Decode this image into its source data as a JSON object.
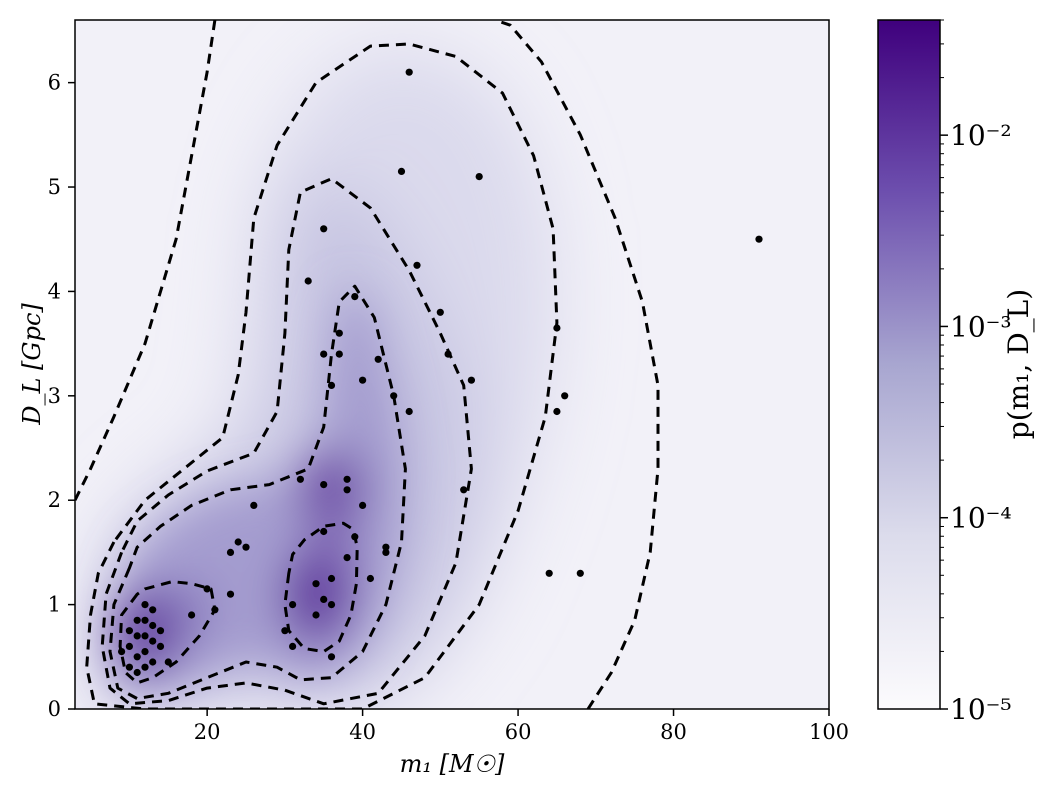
{
  "chart_data": {
    "type": "heatmap",
    "subtype": "2D density (KDE) with dashed contour levels and scatter points",
    "xlabel": "m₁ [M☉]",
    "ylabel": "D_L [Gpc]",
    "colorbar_label": "p(m₁, D_L)",
    "xlim": [
      3,
      100
    ],
    "ylim": [
      0,
      6.6
    ],
    "x_ticks": [
      20,
      40,
      60,
      80,
      100
    ],
    "y_ticks": [
      0,
      1,
      2,
      3,
      4,
      5,
      6
    ],
    "colorbar": {
      "scale": "log",
      "range": [
        1e-05,
        0.04
      ],
      "tick_labels": [
        "10⁻⁵",
        "10⁻⁴",
        "10⁻³",
        "10⁻²"
      ],
      "tick_values": [
        1e-05,
        0.0001,
        0.001,
        0.01
      ],
      "colormap": "Purples",
      "color_low": "#f6f4f9",
      "color_high": "#3f007d"
    },
    "grid": false,
    "contour_style": "black dashed",
    "density_peaks": [
      {
        "m1": 12,
        "DL": 0.75,
        "value": 0.03
      },
      {
        "m1": 34,
        "DL": 1.1,
        "value": 0.02
      },
      {
        "m1": 36,
        "DL": 2.1,
        "value": 0.008
      }
    ],
    "contours": [
      {
        "level": "innermost-1",
        "m1": [
          11.0,
          9.0,
          8.8,
          9.5,
          11.0,
          13.0,
          16.0,
          19.0,
          21.0,
          20.5,
          18.0,
          15.5,
          13.5,
          12.0,
          11.0
        ],
        "DL": [
          1.1,
          0.9,
          0.6,
          0.35,
          0.25,
          0.3,
          0.45,
          0.7,
          0.95,
          1.15,
          1.2,
          1.22,
          1.18,
          1.15,
          1.1
        ]
      },
      {
        "level": "innermost-2",
        "m1": [
          30.5,
          30.0,
          30.5,
          32.5,
          35.0,
          37.0,
          38.5,
          39.2,
          39.3,
          38.8,
          37.5,
          35.0,
          32.5,
          31.0,
          30.5
        ],
        "DL": [
          1.3,
          1.0,
          0.75,
          0.58,
          0.55,
          0.65,
          0.9,
          1.2,
          1.55,
          1.72,
          1.78,
          1.75,
          1.62,
          1.48,
          1.3
        ]
      },
      {
        "level": "3",
        "m1": [
          10.0,
          8.0,
          7.5,
          8.5,
          11.0,
          15.0,
          20.0,
          25.0,
          29.0,
          32.0,
          36.0,
          40.0,
          43.0,
          45.0,
          45.5,
          44.0,
          41.5,
          39.0,
          37.0,
          36.0,
          35.0,
          33.0,
          28.0,
          23.0,
          18.0,
          14.0,
          11.0,
          10.0
        ],
        "DL": [
          1.35,
          1.0,
          0.55,
          0.2,
          0.1,
          0.15,
          0.3,
          0.45,
          0.4,
          0.28,
          0.3,
          0.55,
          1.0,
          1.6,
          2.3,
          3.0,
          3.75,
          4.05,
          3.9,
          3.4,
          2.7,
          2.3,
          2.15,
          2.1,
          1.95,
          1.75,
          1.55,
          1.35
        ]
      },
      {
        "level": "4",
        "m1": [
          9.0,
          7.0,
          6.5,
          7.5,
          10.0,
          15.0,
          20.0,
          25.0,
          30.0,
          35.0,
          42.0,
          48.0,
          52.0,
          54.0,
          53.0,
          50.0,
          46.0,
          41.0,
          36.0,
          32.0,
          30.5,
          30.0,
          29.0,
          26.0,
          20.0,
          15.0,
          11.0,
          9.0
        ],
        "DL": [
          1.5,
          1.1,
          0.6,
          0.2,
          0.05,
          0.08,
          0.2,
          0.25,
          0.18,
          0.05,
          0.15,
          0.7,
          1.4,
          2.3,
          3.1,
          3.6,
          4.2,
          4.8,
          5.08,
          4.95,
          4.4,
          3.6,
          2.85,
          2.45,
          2.28,
          2.05,
          1.8,
          1.5
        ]
      },
      {
        "level": "5",
        "m1": [
          8.0,
          6.0,
          5.0,
          4.5,
          5.5,
          12.0,
          18.0,
          25.0,
          32.0,
          40.0,
          48.0,
          55.0,
          60.0,
          63.5,
          65.0,
          64.5,
          62.0,
          58.0,
          52.0,
          46.0,
          41.0,
          34.0,
          29.0,
          26.0,
          25.0,
          24.0,
          22.0,
          17.0,
          12.0,
          8.0
        ],
        "DL": [
          1.6,
          1.3,
          0.9,
          0.4,
          0.05,
          0.0,
          0.0,
          0.0,
          0.0,
          0.0,
          0.3,
          1.0,
          1.9,
          2.8,
          3.7,
          4.6,
          5.3,
          5.9,
          6.25,
          6.37,
          6.35,
          6.0,
          5.4,
          4.7,
          3.8,
          3.2,
          2.6,
          2.3,
          2.0,
          1.6
        ]
      },
      {
        "level": "outer-1",
        "m1": [
          3.0,
          5.0,
          8.0,
          12.0,
          16.0,
          18.0,
          20.0,
          21.0
        ],
        "DL": [
          2.0,
          2.3,
          2.8,
          3.5,
          4.5,
          5.3,
          6.1,
          6.6
        ]
      },
      {
        "level": "outer-2",
        "m1": [
          69.0,
          72.0,
          75.0,
          77.0,
          78.0,
          78.0,
          76.0,
          72.5,
          68.0,
          63.0,
          59.0,
          57.0
        ],
        "DL": [
          0.0,
          0.35,
          0.85,
          1.5,
          2.3,
          3.1,
          3.9,
          4.7,
          5.5,
          6.2,
          6.55,
          6.6
        ]
      }
    ],
    "points": {
      "m1": [
        9,
        10,
        10,
        10,
        11,
        11,
        11,
        11,
        12,
        12,
        12,
        12,
        12,
        13,
        13,
        13,
        13,
        14,
        14,
        15,
        18,
        20,
        21,
        23,
        23,
        24,
        25,
        26,
        30,
        31,
        31,
        32,
        33,
        34,
        34,
        35,
        35,
        35,
        35,
        35,
        36,
        36,
        36,
        36,
        37,
        37,
        38,
        38,
        38,
        39,
        39,
        40,
        40,
        41,
        42,
        43,
        43,
        44,
        45,
        46,
        46,
        47,
        50,
        51,
        53,
        54,
        55,
        64,
        65,
        65,
        66,
        68,
        91
      ],
      "DL": [
        0.55,
        0.4,
        0.6,
        0.75,
        0.85,
        0.7,
        0.5,
        0.35,
        1.0,
        0.85,
        0.7,
        0.55,
        0.4,
        0.95,
        0.8,
        0.65,
        0.45,
        0.75,
        0.6,
        0.45,
        0.9,
        1.15,
        0.95,
        1.5,
        1.1,
        1.6,
        1.55,
        1.95,
        0.75,
        0.6,
        1.0,
        2.2,
        4.1,
        1.2,
        0.9,
        1.7,
        1.05,
        2.15,
        3.4,
        4.6,
        1.25,
        0.5,
        1.0,
        3.1,
        3.4,
        3.6,
        2.1,
        1.45,
        2.2,
        1.65,
        3.95,
        1.95,
        3.15,
        1.25,
        3.35,
        1.5,
        1.55,
        3.0,
        5.15,
        6.1,
        2.85,
        4.25,
        3.8,
        3.4,
        2.1,
        3.15,
        5.1,
        1.3,
        3.65,
        2.85,
        3.0,
        1.3,
        4.5
      ]
    }
  }
}
